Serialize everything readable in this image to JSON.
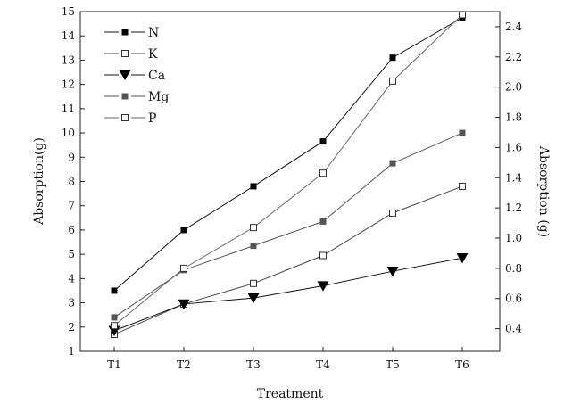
{
  "chart_data": {
    "type": "line",
    "title": "",
    "xlabel": "Treatment",
    "ylabel_left": "Absorption(g)",
    "ylabel_right": "Absorption (g)",
    "categories": [
      "T1",
      "T2",
      "T3",
      "T4",
      "T5",
      "T6"
    ],
    "ylim_left": [
      1,
      15
    ],
    "yticks_left": [
      1,
      2,
      3,
      4,
      5,
      6,
      7,
      8,
      9,
      10,
      11,
      12,
      13,
      14,
      15
    ],
    "ylim_right": [
      0.25,
      2.5
    ],
    "yticks_right": [
      0.4,
      0.6,
      0.8,
      1.0,
      1.2,
      1.4,
      1.6,
      1.8,
      2.0,
      2.2,
      2.4
    ],
    "ytick_labels_right": [
      "0.4",
      "0.6",
      "0.8",
      "1.0",
      "1.2",
      "1.4",
      "1.6",
      "1.8",
      "2.0",
      "2.2",
      "2.4"
    ],
    "grid": false,
    "legend_position": "top-left",
    "series": [
      {
        "name": "N",
        "axis": "left",
        "marker": "square-filled",
        "color": "#111111",
        "values": [
          3.5,
          6.0,
          7.8,
          9.65,
          13.1,
          14.75
        ]
      },
      {
        "name": "K",
        "axis": "left",
        "marker": "square-open",
        "color": "#444444",
        "values": [
          1.7,
          2.95,
          3.8,
          4.95,
          6.7,
          7.8
        ]
      },
      {
        "name": "Ca",
        "axis": "left",
        "marker": "triangle-down",
        "color": "#111111",
        "values": [
          1.85,
          2.95,
          3.2,
          3.7,
          4.3,
          4.85
        ]
      },
      {
        "name": "Mg",
        "axis": "left",
        "marker": "square-gray",
        "color": "#555555",
        "values": [
          2.4,
          4.35,
          5.35,
          6.35,
          8.75,
          10.0
        ]
      },
      {
        "name": "P",
        "axis": "right",
        "marker": "square-open",
        "color": "#666666",
        "values": [
          0.42,
          0.8,
          1.07,
          1.43,
          2.04,
          2.48
        ]
      }
    ]
  }
}
